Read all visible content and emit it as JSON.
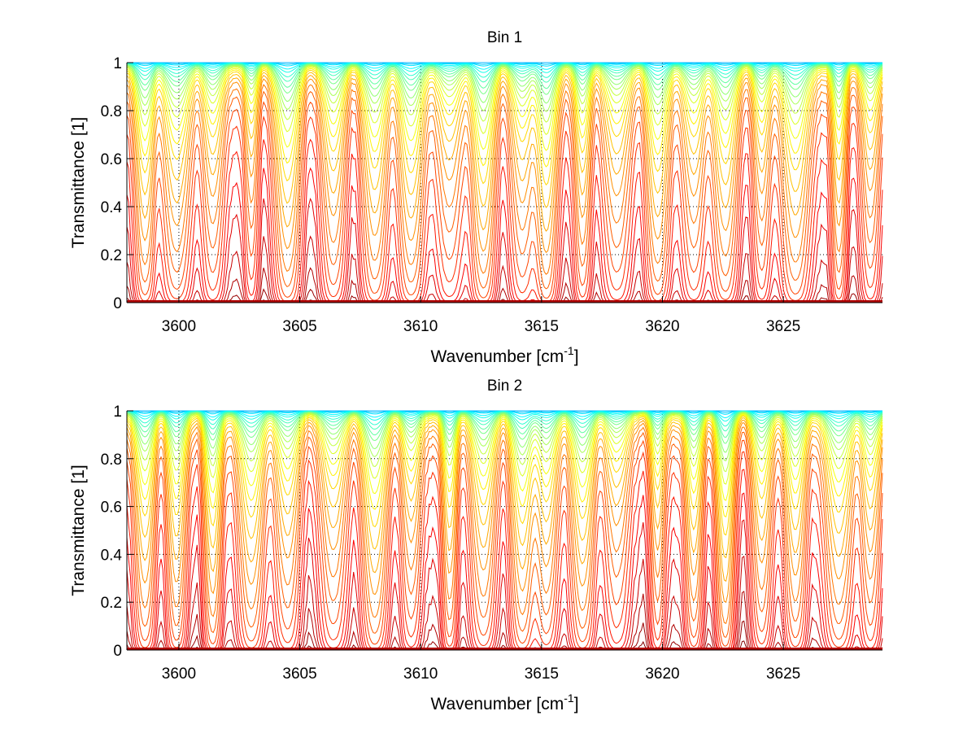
{
  "chart_data": [
    {
      "type": "line",
      "title": "Bin 1",
      "xlabel": "Wavenumber [cm",
      "xlabel_sup": "-1",
      "xlabel_end": "]",
      "ylabel": "Transmittance [1]",
      "xlim": [
        3597.85,
        3629.1
      ],
      "ylim": [
        0,
        1
      ],
      "xticks": [
        3600,
        3605,
        3610,
        3615,
        3620,
        3625
      ],
      "xtick_labels": [
        "3600",
        "3605",
        "3610",
        "3615",
        "3620",
        "3625"
      ],
      "yticks": [
        0,
        0.2,
        0.4,
        0.6,
        0.8,
        1
      ],
      "ytick_labels": [
        "0",
        "0.2",
        "0.4",
        "0.6",
        "0.8",
        "1"
      ],
      "grid": "dotted",
      "legend": "none",
      "colormap": "jet",
      "series_count": 40,
      "absorption_lines_cm-1": [
        3598.6,
        3599.9,
        3601.4,
        3603.0,
        3604.5,
        3606.4,
        3608.1,
        3609.6,
        3611.2,
        3612.6,
        3614.2,
        3615.2,
        3616.7,
        3618.1,
        3619.8,
        3621.3,
        3622.6,
        3624.1,
        3625.5,
        3627.3,
        3628.6
      ],
      "optical_depth_scale": [
        0.0,
        0.005,
        0.01,
        0.02,
        0.03,
        0.045,
        0.06,
        0.08,
        0.1,
        0.13,
        0.16,
        0.2,
        0.25,
        0.32,
        0.4,
        0.5,
        0.65,
        0.85,
        1.1,
        1.5,
        2.0,
        2.8,
        4.0,
        6.0,
        9.0,
        13.0,
        20.0,
        30.0,
        45.0,
        70.0
      ]
    },
    {
      "type": "line",
      "title": "Bin 2",
      "xlabel": "Wavenumber [cm",
      "xlabel_sup": "-1",
      "xlabel_end": "]",
      "ylabel": "Transmittance [1]",
      "xlim": [
        3597.85,
        3629.1
      ],
      "ylim": [
        0,
        1
      ],
      "xticks": [
        3600,
        3605,
        3610,
        3615,
        3620,
        3625
      ],
      "xtick_labels": [
        "3600",
        "3605",
        "3610",
        "3615",
        "3620",
        "3625"
      ],
      "yticks": [
        0,
        0.2,
        0.4,
        0.6,
        0.8,
        1
      ],
      "ytick_labels": [
        "0",
        "0.2",
        "0.4",
        "0.6",
        "0.8",
        "1"
      ],
      "grid": "dotted",
      "legend": "none",
      "colormap": "jet",
      "series_count": 40,
      "absorption_lines_cm-1": [
        3598.6,
        3599.9,
        3601.4,
        3603.0,
        3604.5,
        3606.4,
        3608.1,
        3609.6,
        3611.2,
        3612.6,
        3614.2,
        3615.2,
        3616.7,
        3618.1,
        3619.8,
        3621.3,
        3622.6,
        3624.1,
        3625.5,
        3627.3,
        3628.6
      ],
      "optical_depth_scale": [
        0.0,
        0.005,
        0.01,
        0.02,
        0.03,
        0.045,
        0.06,
        0.08,
        0.1,
        0.13,
        0.16,
        0.2,
        0.25,
        0.32,
        0.4,
        0.5,
        0.65,
        0.85,
        1.1,
        1.5,
        2.0,
        2.8,
        4.0,
        6.0,
        9.0,
        13.0,
        20.0,
        30.0,
        45.0,
        70.0
      ]
    }
  ]
}
